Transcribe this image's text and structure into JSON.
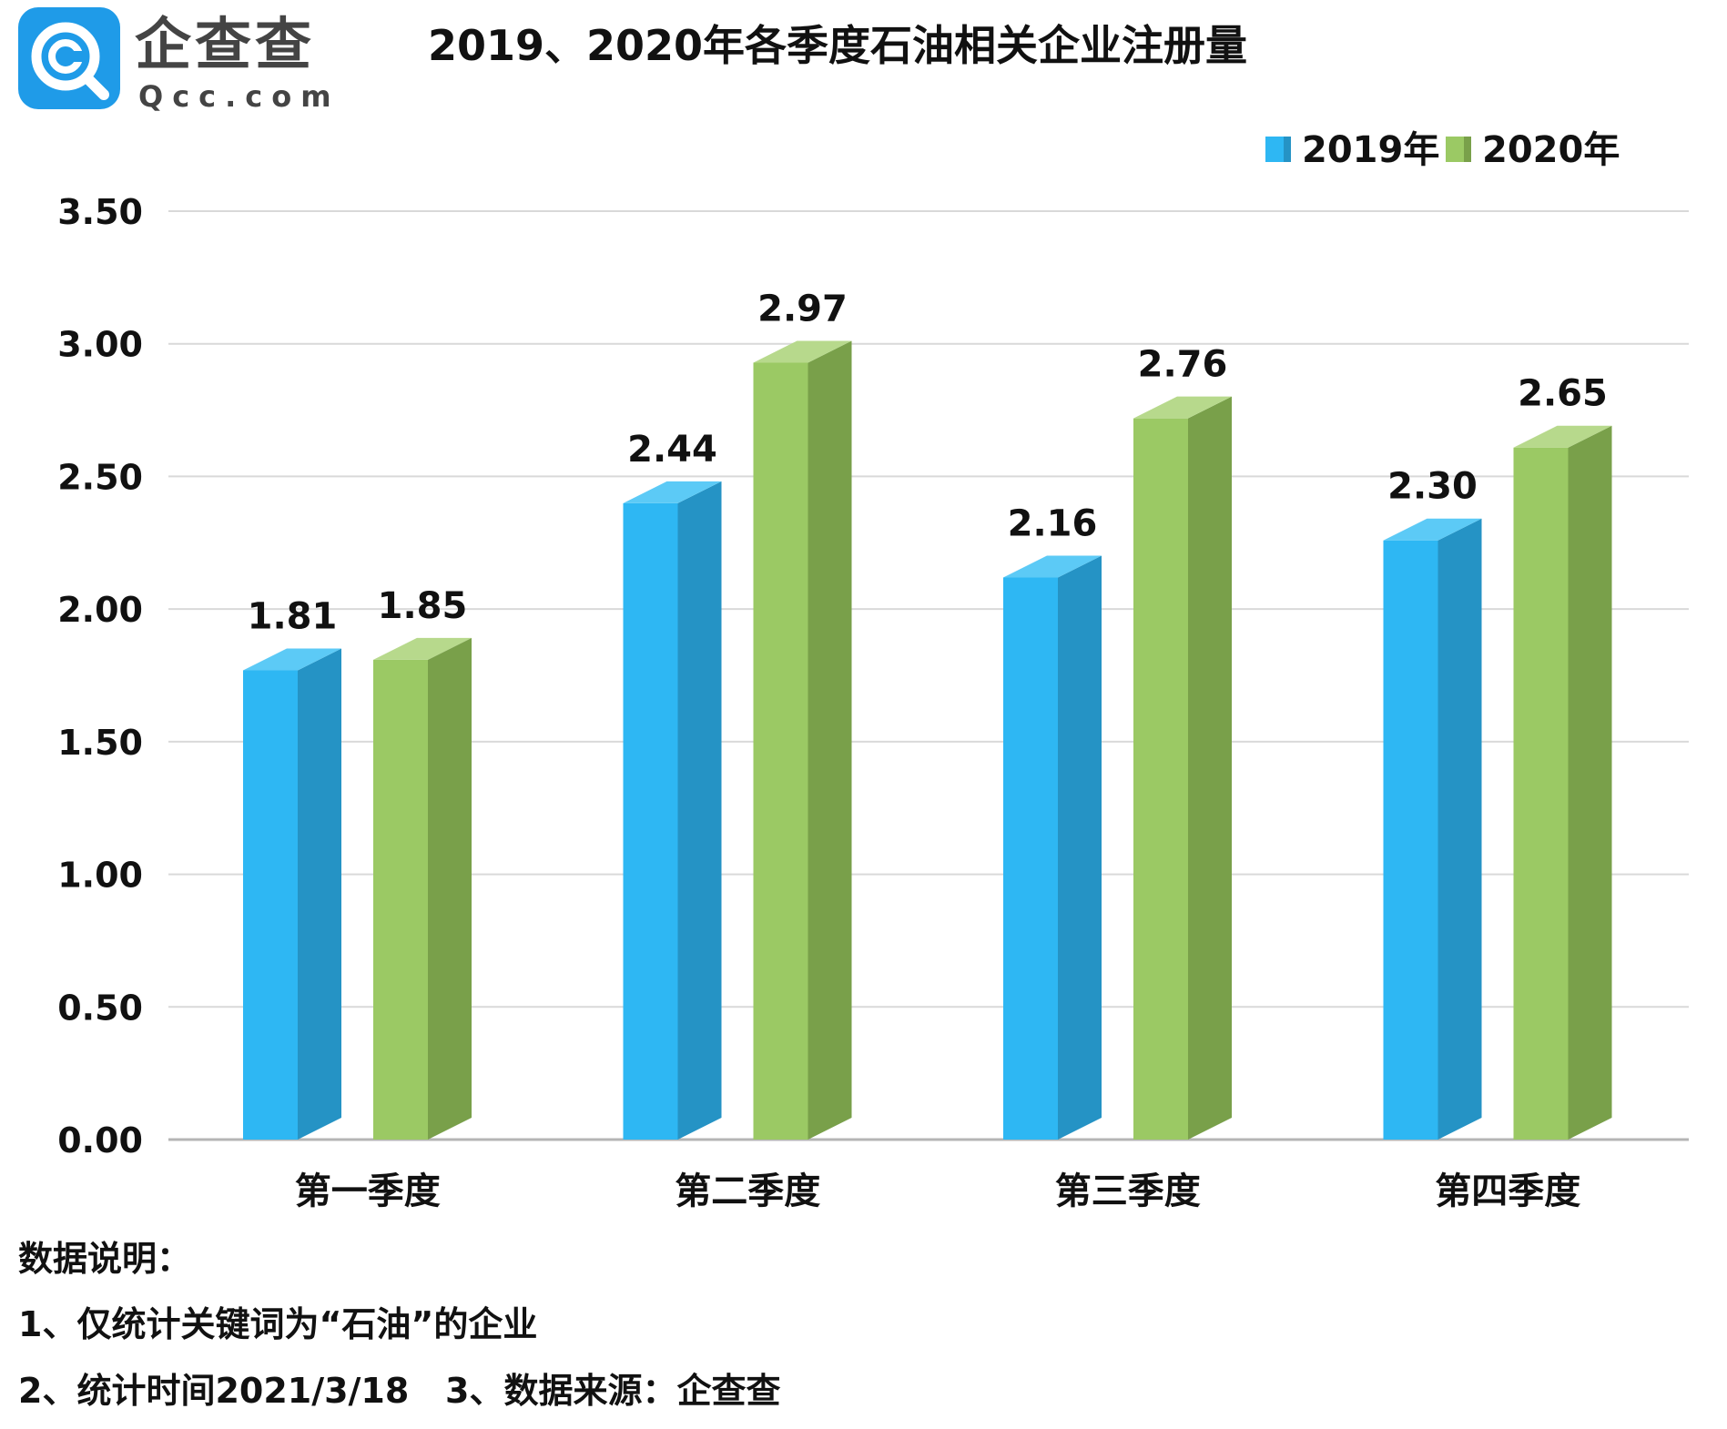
{
  "logo": {
    "name": "企查查",
    "domain": "Qcc.com"
  },
  "chart_data": {
    "type": "bar",
    "title": "2019、2020年各季度石油相关企业注册量",
    "categories": [
      "第一季度",
      "第二季度",
      "第三季度",
      "第四季度"
    ],
    "series": [
      {
        "name": "2019年",
        "values": [
          1.81,
          2.44,
          2.16,
          2.3
        ],
        "color": "#2eb7f3",
        "side_color": "#2593c5",
        "top_color": "#5ccaf6"
      },
      {
        "name": "2020年",
        "values": [
          1.85,
          2.97,
          2.76,
          2.65
        ],
        "color": "#9bc964",
        "side_color": "#79a04a",
        "top_color": "#b7d98c"
      }
    ],
    "value_labels": [
      [
        "1.81",
        "2.44",
        "2.16",
        "2.30"
      ],
      [
        "1.85",
        "2.97",
        "2.76",
        "2.65"
      ]
    ],
    "yticks": [
      "0.00",
      "0.50",
      "1.00",
      "1.50",
      "2.00",
      "2.50",
      "3.00",
      "3.50"
    ],
    "ylim": [
      0,
      3.5
    ],
    "xlabel": "",
    "ylabel": "",
    "legend_position": "top-right",
    "grid": true,
    "style": "3d-column"
  },
  "notes": {
    "heading": "数据说明：",
    "line1": "1、仅统计关键词为“石油”的企业",
    "line2a": "2、统计时间2021/3/18",
    "line2b": "3、数据来源：企查查"
  }
}
